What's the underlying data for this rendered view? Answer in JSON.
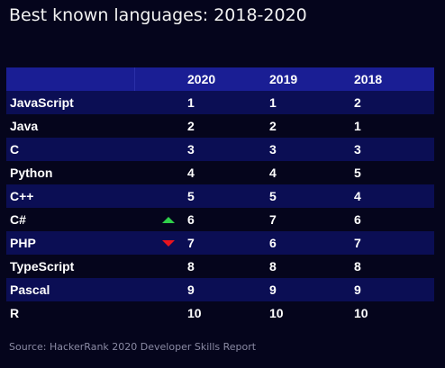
{
  "title": "Best known languages: 2018-2020",
  "source": "Source: HackerRank 2020 Developer Skills Report",
  "colors": {
    "background": "#05051c",
    "header_row": "#1a1e94",
    "striped_row": "#0b0e54",
    "trend_up": "#2fcf4a",
    "trend_down": "#e8141e"
  },
  "chart_data": {
    "type": "table",
    "title": "Best known languages: 2018-2020",
    "columns": [
      "",
      "2020",
      "2019",
      "2018"
    ],
    "rows": [
      {
        "language": "JavaScript",
        "trend": "",
        "2020": "1",
        "2019": "1",
        "2018": "2"
      },
      {
        "language": "Java",
        "trend": "",
        "2020": "2",
        "2019": "2",
        "2018": "1"
      },
      {
        "language": "C",
        "trend": "",
        "2020": "3",
        "2019": "3",
        "2018": "3"
      },
      {
        "language": "Python",
        "trend": "",
        "2020": "4",
        "2019": "4",
        "2018": "5"
      },
      {
        "language": "C++",
        "trend": "",
        "2020": "5",
        "2019": "5",
        "2018": "4"
      },
      {
        "language": "C#",
        "trend": "up",
        "2020": "6",
        "2019": "7",
        "2018": "6"
      },
      {
        "language": "PHP",
        "trend": "down",
        "2020": "7",
        "2019": "6",
        "2018": "7"
      },
      {
        "language": "TypeScript",
        "trend": "",
        "2020": "8",
        "2019": "8",
        "2018": "8"
      },
      {
        "language": "Pascal",
        "trend": "",
        "2020": "9",
        "2019": "9",
        "2018": "9"
      },
      {
        "language": "R",
        "trend": "",
        "2020": "10",
        "2019": "10",
        "2018": "10"
      }
    ]
  }
}
